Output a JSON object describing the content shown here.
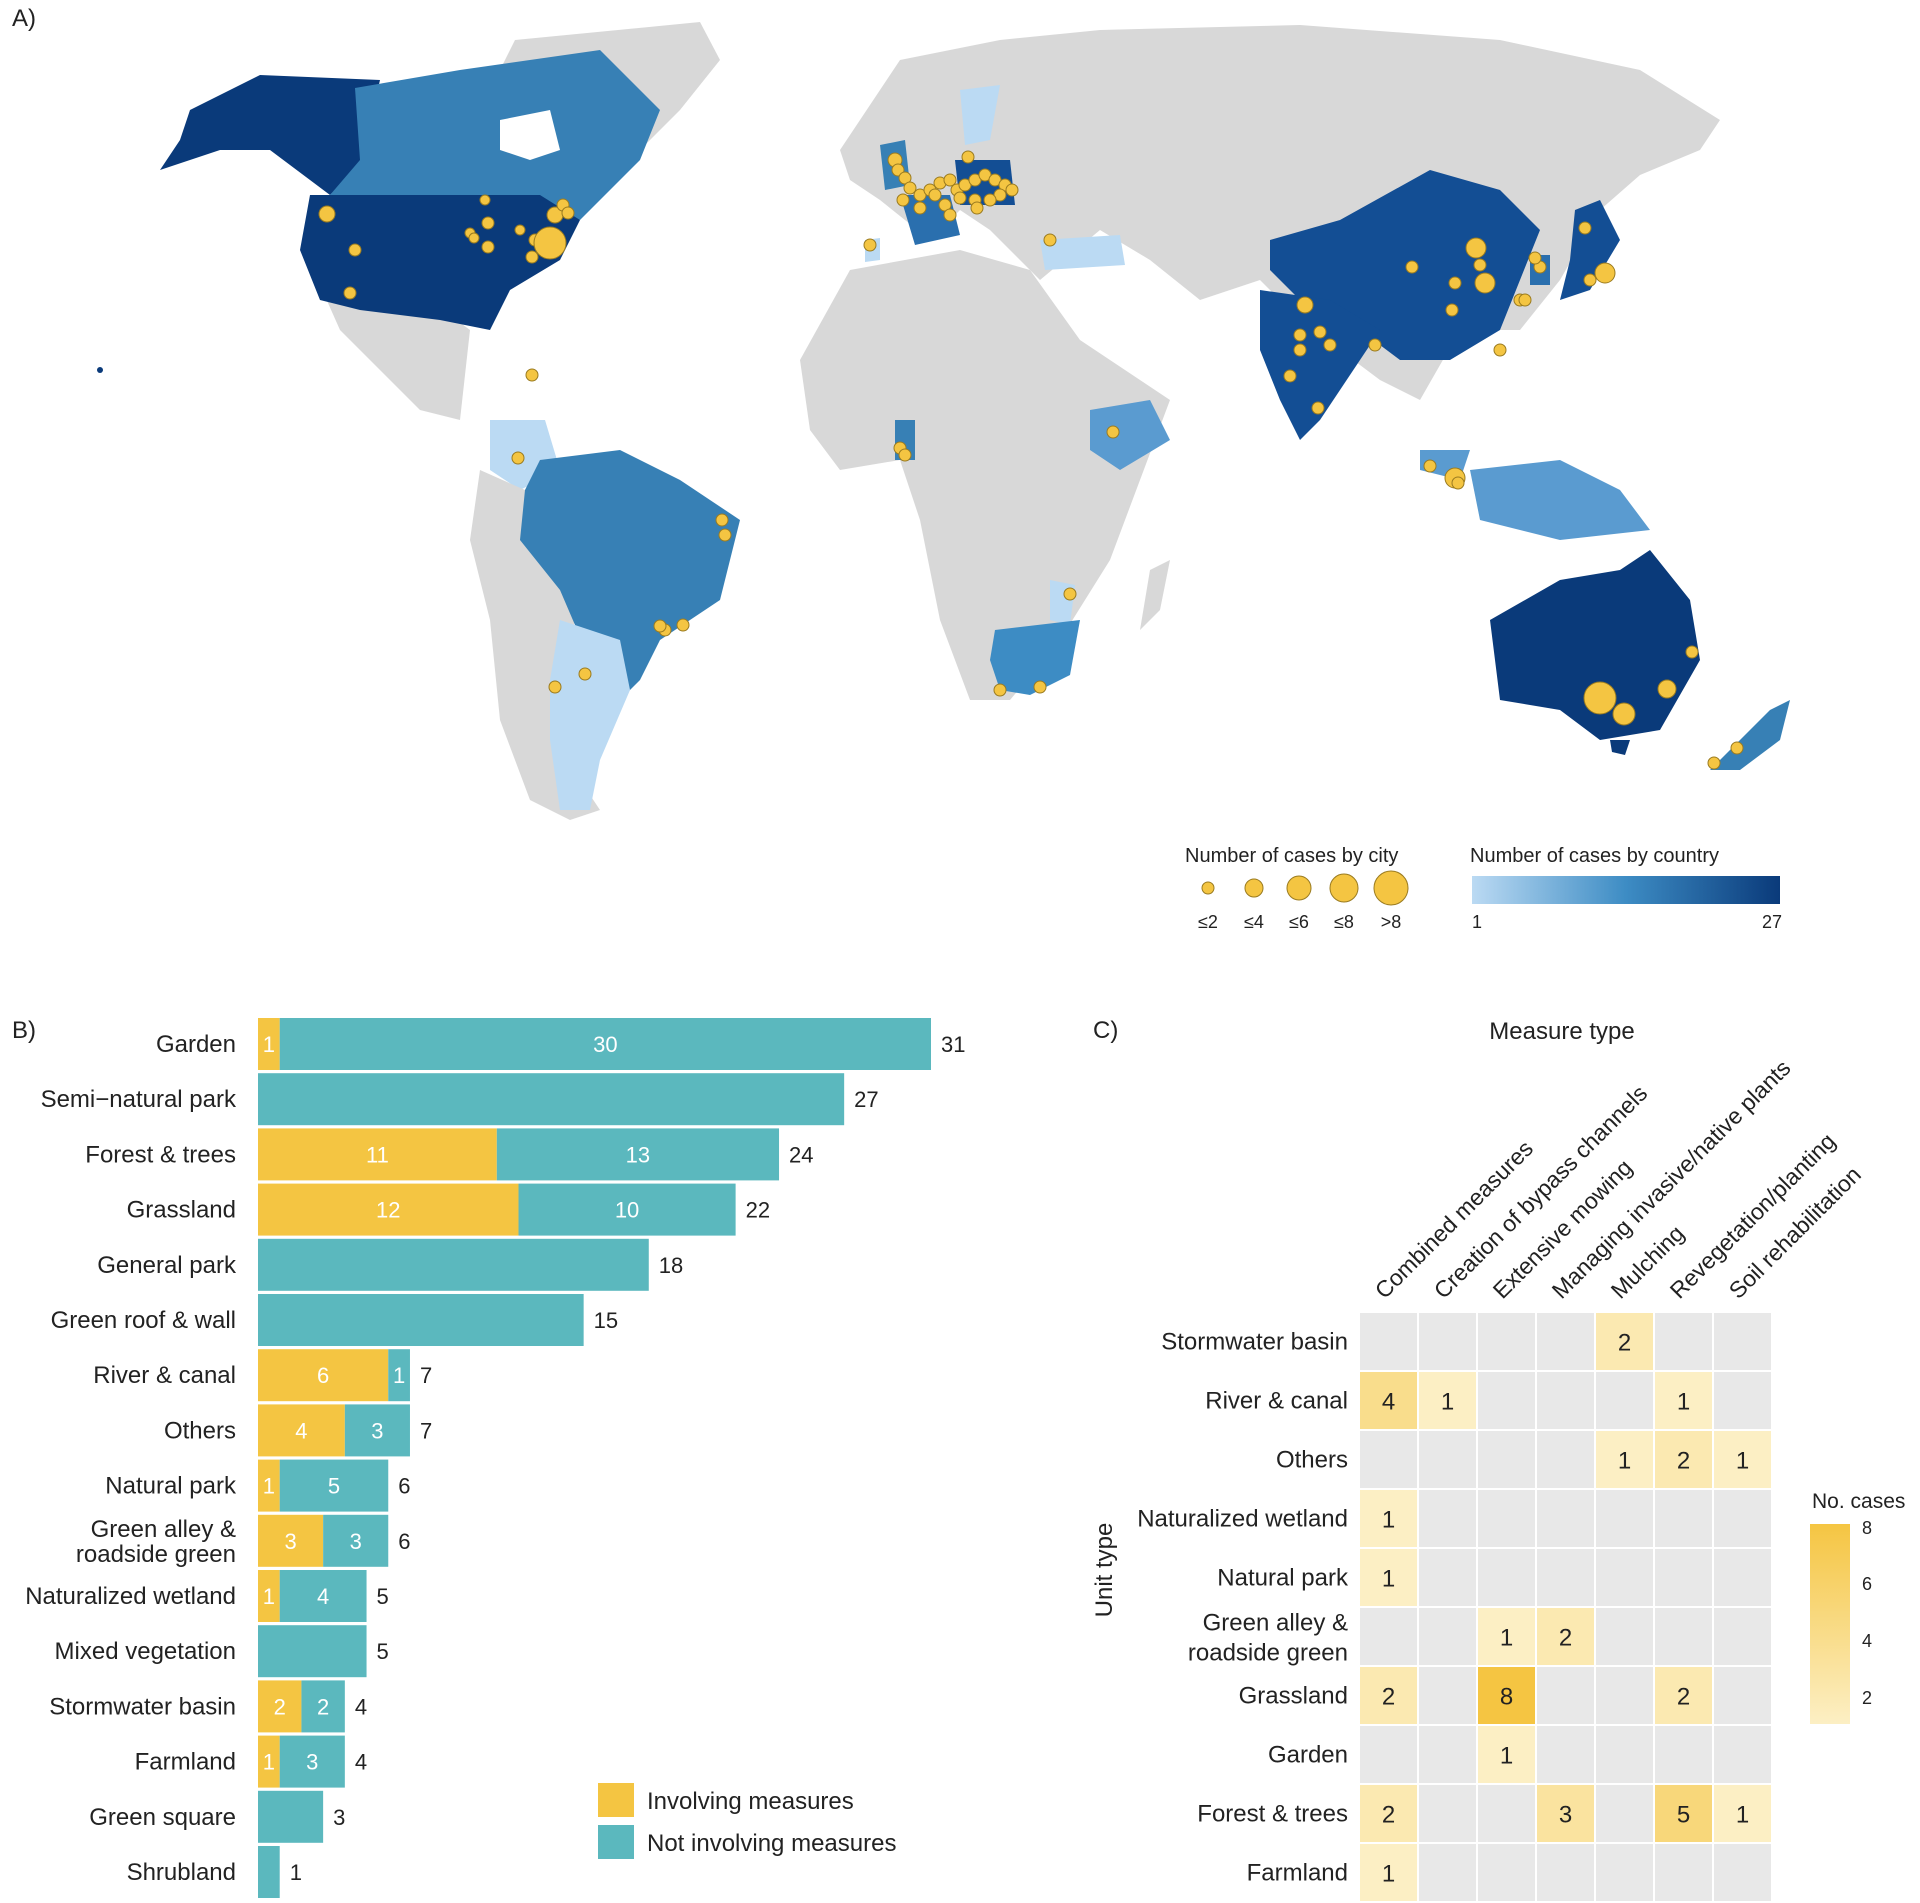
{
  "colors": {
    "involving": "#F4C542",
    "not_involving": "#5BB8BE",
    "land": "#D8D8D8",
    "ocean": "#FFFFFF",
    "country_low": "#BBDAF3",
    "country_high": "#0A3A7A",
    "heat_low": "#FCEFC4",
    "heat_high": "#F5C542",
    "heat_bg": "#E8E8E8"
  },
  "panel_a": {
    "label": "A)",
    "legend_city_title": "Number of cases by city",
    "legend_city_labels": [
      "≤2",
      "≤4",
      "≤6",
      "≤8",
      ">8"
    ],
    "legend_country_title": "Number of cases by country",
    "legend_country_min": "1",
    "legend_country_max": "27"
  },
  "panel_b": {
    "label": "B)",
    "legend": [
      "Involving measures",
      "Not involving measures"
    ]
  },
  "panel_c": {
    "label": "C)",
    "title": "Measure type",
    "y_title": "Unit type",
    "legend_title": "No. cases",
    "legend_ticks": [
      "8",
      "6",
      "4",
      "2"
    ]
  },
  "chart_data": [
    {
      "type": "bar",
      "orientation": "horizontal",
      "stacked": true,
      "categories": [
        "Garden",
        "Semi−natural park",
        "Forest & trees",
        "Grassland",
        "General park",
        "Green roof & wall",
        "River & canal",
        "Others",
        "Natural park",
        "Green alley & roadside green",
        "Naturalized wetland",
        "Mixed vegetation",
        "Stormwater basin",
        "Farmland",
        "Green square",
        "Shrubland"
      ],
      "series": [
        {
          "name": "Involving measures",
          "values": [
            1,
            0,
            11,
            12,
            0,
            0,
            6,
            4,
            1,
            3,
            1,
            0,
            2,
            1,
            0,
            0
          ]
        },
        {
          "name": "Not involving measures",
          "values": [
            30,
            27,
            13,
            10,
            18,
            15,
            1,
            3,
            5,
            3,
            4,
            5,
            2,
            3,
            3,
            1
          ]
        }
      ],
      "totals": [
        31,
        27,
        24,
        22,
        18,
        15,
        7,
        7,
        6,
        6,
        5,
        5,
        4,
        4,
        3,
        1
      ],
      "legend_position": "bottom-right"
    },
    {
      "type": "heatmap",
      "title": "Measure type",
      "ylabel": "Unit type",
      "x": [
        "Combined measures",
        "Creation of bypass channels",
        "Extensive mowing",
        "Managing invasive/native plants",
        "Mulching",
        "Revegetation/planting",
        "Soil rehabilitation"
      ],
      "y": [
        "Stormwater basin",
        "River & canal",
        "Others",
        "Naturalized wetland",
        "Natural park",
        "Green alley & roadside green",
        "Grassland",
        "Garden",
        "Forest & trees",
        "Farmland"
      ],
      "values": [
        [
          null,
          null,
          null,
          null,
          2,
          null,
          null
        ],
        [
          4,
          1,
          null,
          null,
          null,
          1,
          null
        ],
        [
          null,
          null,
          null,
          null,
          1,
          2,
          1
        ],
        [
          1,
          null,
          null,
          null,
          null,
          null,
          null
        ],
        [
          1,
          null,
          null,
          null,
          null,
          null,
          null
        ],
        [
          null,
          null,
          1,
          2,
          null,
          null,
          null
        ],
        [
          2,
          null,
          8,
          null,
          null,
          2,
          null
        ],
        [
          null,
          null,
          1,
          null,
          null,
          null,
          null
        ],
        [
          2,
          null,
          null,
          3,
          null,
          5,
          1
        ],
        [
          1,
          null,
          null,
          null,
          null,
          null,
          null
        ]
      ],
      "color_range": [
        1,
        8
      ],
      "legend_title": "No. cases"
    }
  ]
}
